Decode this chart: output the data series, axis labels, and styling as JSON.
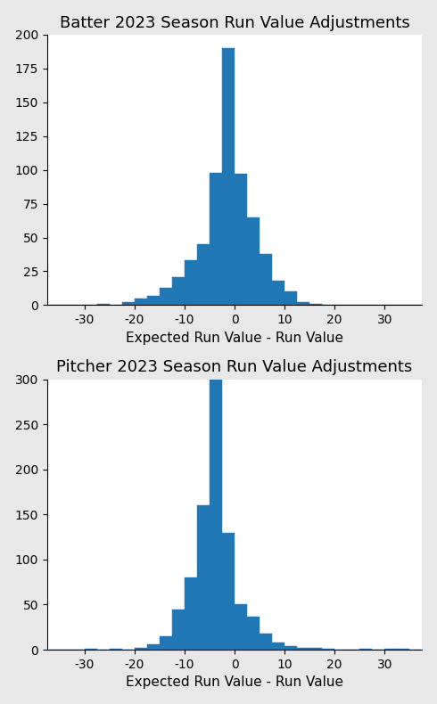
{
  "batter": {
    "title": "Batter 2023 Season Run Value Adjustments",
    "xlabel": "Expected Run Value - Run Value",
    "bar_color": "#2077b4",
    "bin_left_edges": [
      -37.5,
      -35,
      -32.5,
      -30,
      -27.5,
      -25,
      -22.5,
      -20,
      -17.5,
      -15,
      -12.5,
      -10,
      -7.5,
      -5,
      -2.5,
      0,
      2.5,
      5,
      7.5,
      10,
      12.5,
      15,
      17.5,
      20,
      22.5,
      25,
      27.5,
      30,
      32.5,
      35
    ],
    "counts": [
      0,
      0,
      0,
      0,
      1,
      0,
      2,
      5,
      7,
      13,
      21,
      33,
      45,
      98,
      190,
      97,
      65,
      38,
      18,
      10,
      2,
      1,
      0,
      0,
      0,
      0,
      0,
      0,
      0,
      0
    ],
    "ylim": [
      0,
      200
    ],
    "yticks": [
      0,
      25,
      50,
      75,
      100,
      125,
      150,
      175,
      200
    ]
  },
  "pitcher": {
    "title": "Pitcher 2023 Season Run Value Adjustments",
    "xlabel": "Expected Run Value - Run Value",
    "bar_color": "#2077b4",
    "bin_left_edges": [
      -37.5,
      -35,
      -32.5,
      -30,
      -27.5,
      -25,
      -22.5,
      -20,
      -17.5,
      -15,
      -12.5,
      -10,
      -7.5,
      -5,
      -2.5,
      0,
      2.5,
      5,
      7.5,
      10,
      12.5,
      15,
      17.5,
      20,
      22.5,
      25,
      27.5,
      30,
      32.5,
      35
    ],
    "counts": [
      0,
      0,
      0,
      1,
      0,
      1,
      0,
      2,
      6,
      15,
      45,
      80,
      160,
      300,
      130,
      50,
      37,
      18,
      8,
      4,
      2,
      2,
      1,
      0,
      0,
      1,
      0,
      1,
      1,
      0
    ],
    "ylim": [
      0,
      300
    ],
    "yticks": [
      0,
      50,
      100,
      150,
      200,
      250,
      300
    ]
  },
  "fig_width": 4.9,
  "fig_height": 7.9,
  "dpi": 100,
  "background_color": "#e8e8e8",
  "xlim": [
    -37.5,
    37.5
  ],
  "xticks": [
    -30,
    -20,
    -10,
    0,
    10,
    20,
    30
  ],
  "bin_width": 2.5
}
